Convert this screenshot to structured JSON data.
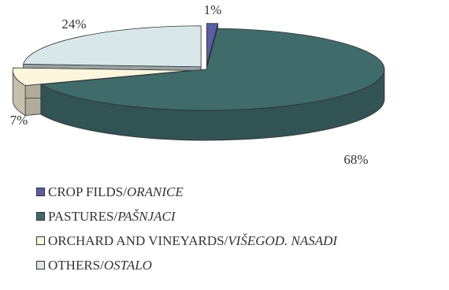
{
  "chart_data": {
    "type": "pie",
    "style": "3d-exploded",
    "categories": [
      "CROP FILDS/ORANICE",
      "PASTURES/PAŠNJACI",
      "ORCHARD AND VINEYARDS/VIŠEGOD. NASADI",
      "OTHERS/OSTALO"
    ],
    "values": [
      1,
      68,
      7,
      24
    ],
    "data_labels": [
      "1%",
      "68%",
      "7%",
      "24%"
    ],
    "colors": [
      "#5a5ea8",
      "#3f6b6b",
      "#fdf5dc",
      "#d8e8ea"
    ],
    "legend_position": "bottom-left",
    "title": ""
  },
  "legend": [
    {
      "plain": "CROP FILDS/",
      "italic": "ORANICE",
      "color": "#5a5ea8"
    },
    {
      "plain": "PASTURES/",
      "italic": "PAŠNJACI",
      "color": "#3f6b6b"
    },
    {
      "plain": "ORCHARD AND VINEYARDS/",
      "italic": "VIŠEGOD. NASADI",
      "color": "#fdf5dc"
    },
    {
      "plain": "OTHERS/",
      "italic": "OSTALO",
      "color": "#d8e8ea"
    }
  ]
}
